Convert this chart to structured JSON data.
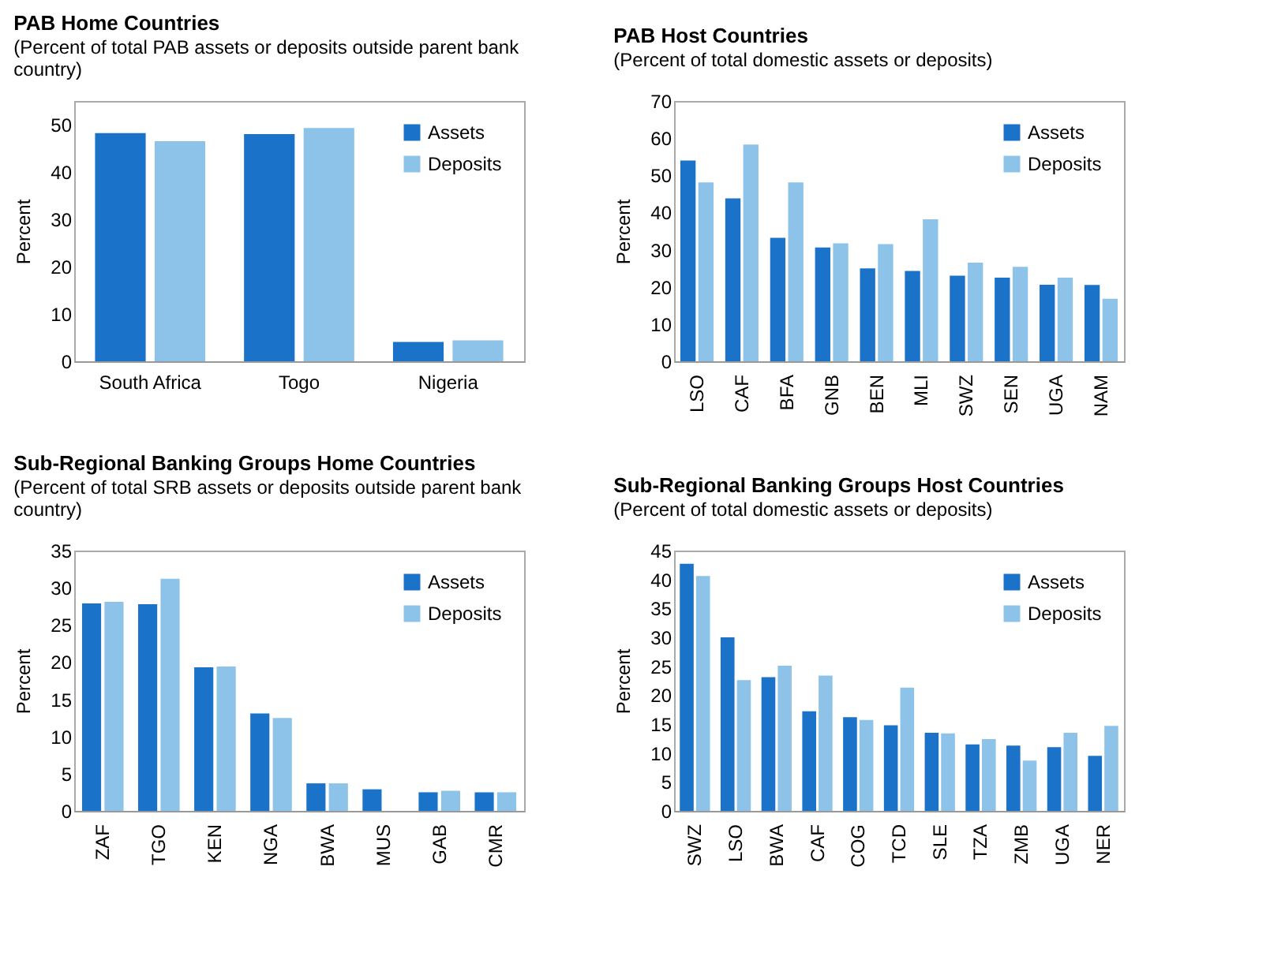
{
  "chart_data": [
    {
      "type": "bar",
      "title": "PAB Home Countries",
      "subtitle": "(Percent of total PAB assets or deposits outside parent bank country)",
      "ylabel": "Percent",
      "categories": [
        "South Africa",
        "Togo",
        "Nigeria"
      ],
      "series": [
        {
          "name": "Assets",
          "color": "#1b72c9",
          "values": [
            48.2,
            48.0,
            4.1
          ]
        },
        {
          "name": "Deposits",
          "color": "#8dc3e8",
          "values": [
            46.5,
            49.3,
            4.4
          ]
        }
      ],
      "ylim": [
        0,
        55
      ],
      "yticks": [
        0,
        10,
        20,
        30,
        40,
        50
      ],
      "legend": "top right"
    },
    {
      "type": "bar",
      "title": "PAB Host Countries",
      "subtitle": "(Percent of total domestic assets or deposits)",
      "ylabel": "Percent",
      "categories": [
        "LSO",
        "CAF",
        "BFA",
        "GNB",
        "BEN",
        "MLI",
        "SWZ",
        "SEN",
        "UGA",
        "NAM"
      ],
      "series": [
        {
          "name": "Assets",
          "color": "#1b72c9",
          "values": [
            54.0,
            43.8,
            33.2,
            30.6,
            25.0,
            24.3,
            23.0,
            22.5,
            20.6,
            20.5
          ]
        },
        {
          "name": "Deposits",
          "color": "#8dc3e8",
          "values": [
            48.1,
            58.3,
            48.1,
            31.7,
            31.5,
            38.2,
            26.5,
            25.4,
            22.5,
            16.8
          ]
        }
      ],
      "ylim": [
        0,
        70
      ],
      "yticks": [
        0,
        10,
        20,
        30,
        40,
        50,
        60,
        70
      ],
      "legend": "top right"
    },
    {
      "type": "bar",
      "title": "Sub-Regional Banking Groups Home Countries",
      "subtitle": "(Percent of total SRB assets or deposits outside parent bank country)",
      "ylabel": "Percent",
      "categories": [
        "ZAF",
        "TGO",
        "KEN",
        "NGA",
        "BWA",
        "MUS",
        "GAB",
        "CMR"
      ],
      "series": [
        {
          "name": "Assets",
          "color": "#1b72c9",
          "values": [
            27.9,
            27.8,
            19.3,
            13.1,
            3.7,
            2.9,
            2.5,
            2.5
          ]
        },
        {
          "name": "Deposits",
          "color": "#8dc3e8",
          "values": [
            28.1,
            31.2,
            19.4,
            12.5,
            3.7,
            null,
            2.7,
            2.5
          ]
        }
      ],
      "ylim": [
        0,
        35
      ],
      "yticks": [
        0,
        5,
        10,
        15,
        20,
        25,
        30,
        35
      ],
      "legend": "top right"
    },
    {
      "type": "bar",
      "title": "Sub-Regional Banking Groups Host Countries",
      "subtitle": "(Percent of total domestic assets or deposits)",
      "ylabel": "Percent",
      "categories": [
        "SWZ",
        "LSO",
        "BWA",
        "CAF",
        "COG",
        "TCD",
        "SLE",
        "TZA",
        "ZMB",
        "UGA",
        "NER"
      ],
      "series": [
        {
          "name": "Assets",
          "color": "#1b72c9",
          "values": [
            42.7,
            30.0,
            23.1,
            17.2,
            16.2,
            14.8,
            13.5,
            11.5,
            11.3,
            11.0,
            9.5
          ]
        },
        {
          "name": "Deposits",
          "color": "#8dc3e8",
          "values": [
            40.6,
            22.6,
            25.1,
            23.4,
            15.7,
            21.3,
            13.4,
            12.4,
            8.7,
            13.5,
            14.7
          ]
        }
      ],
      "ylim": [
        0,
        45
      ],
      "yticks": [
        0,
        5,
        10,
        15,
        20,
        25,
        30,
        35,
        40,
        45
      ],
      "legend": "top right"
    }
  ]
}
